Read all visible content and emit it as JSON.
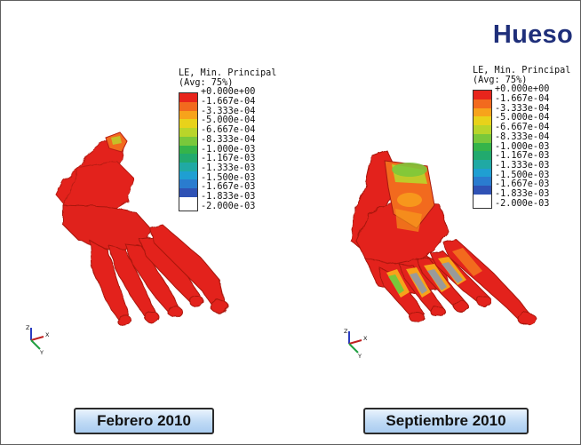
{
  "slide": {
    "title": "Hueso",
    "bottom_border_color": "#5f5f5f"
  },
  "legend_left": {
    "title_line1": "LE, Min. Principal",
    "title_line2": "(Avg: 75%)",
    "values": [
      "+0.000e+00",
      "-1.667e-04",
      "-3.333e-04",
      "-5.000e-04",
      "-6.667e-04",
      "-8.333e-04",
      "-1.000e-03",
      "-1.167e-03",
      "-1.333e-03",
      "-1.500e-03",
      "-1.667e-03",
      "-1.833e-03",
      "-2.000e-03"
    ]
  },
  "legend_right": {
    "title_line1": "LE, Min. Principal",
    "title_line2": "(Avg: 75%)",
    "values": [
      "+0.000e+00",
      "-1.667e-04",
      "-3.333e-04",
      "-5.000e-04",
      "-6.667e-04",
      "-8.333e-04",
      "-1.000e-03",
      "-1.167e-03",
      "-1.333e-03",
      "-1.500e-03",
      "-1.667e-03",
      "-1.833e-03",
      "-2.000e-03"
    ]
  },
  "colormap": [
    "#e8251c",
    "#f26a1e",
    "#f7a31b",
    "#e8d21a",
    "#b9d52a",
    "#79c83b",
    "#35b44a",
    "#22aa6e",
    "#20a9a4",
    "#1f9fd2",
    "#2a7ccf",
    "#2f52b5"
  ],
  "axes_triad": {
    "z_label": "Z",
    "x_label": "X",
    "y_label": "Y"
  },
  "labels": {
    "left_date": "Febrero 2010",
    "right_date": "Septiembre 2010"
  },
  "colors": {
    "title": "#1f2f7a",
    "foot_red": "#e3231a",
    "foot_dark": "#a01810"
  }
}
